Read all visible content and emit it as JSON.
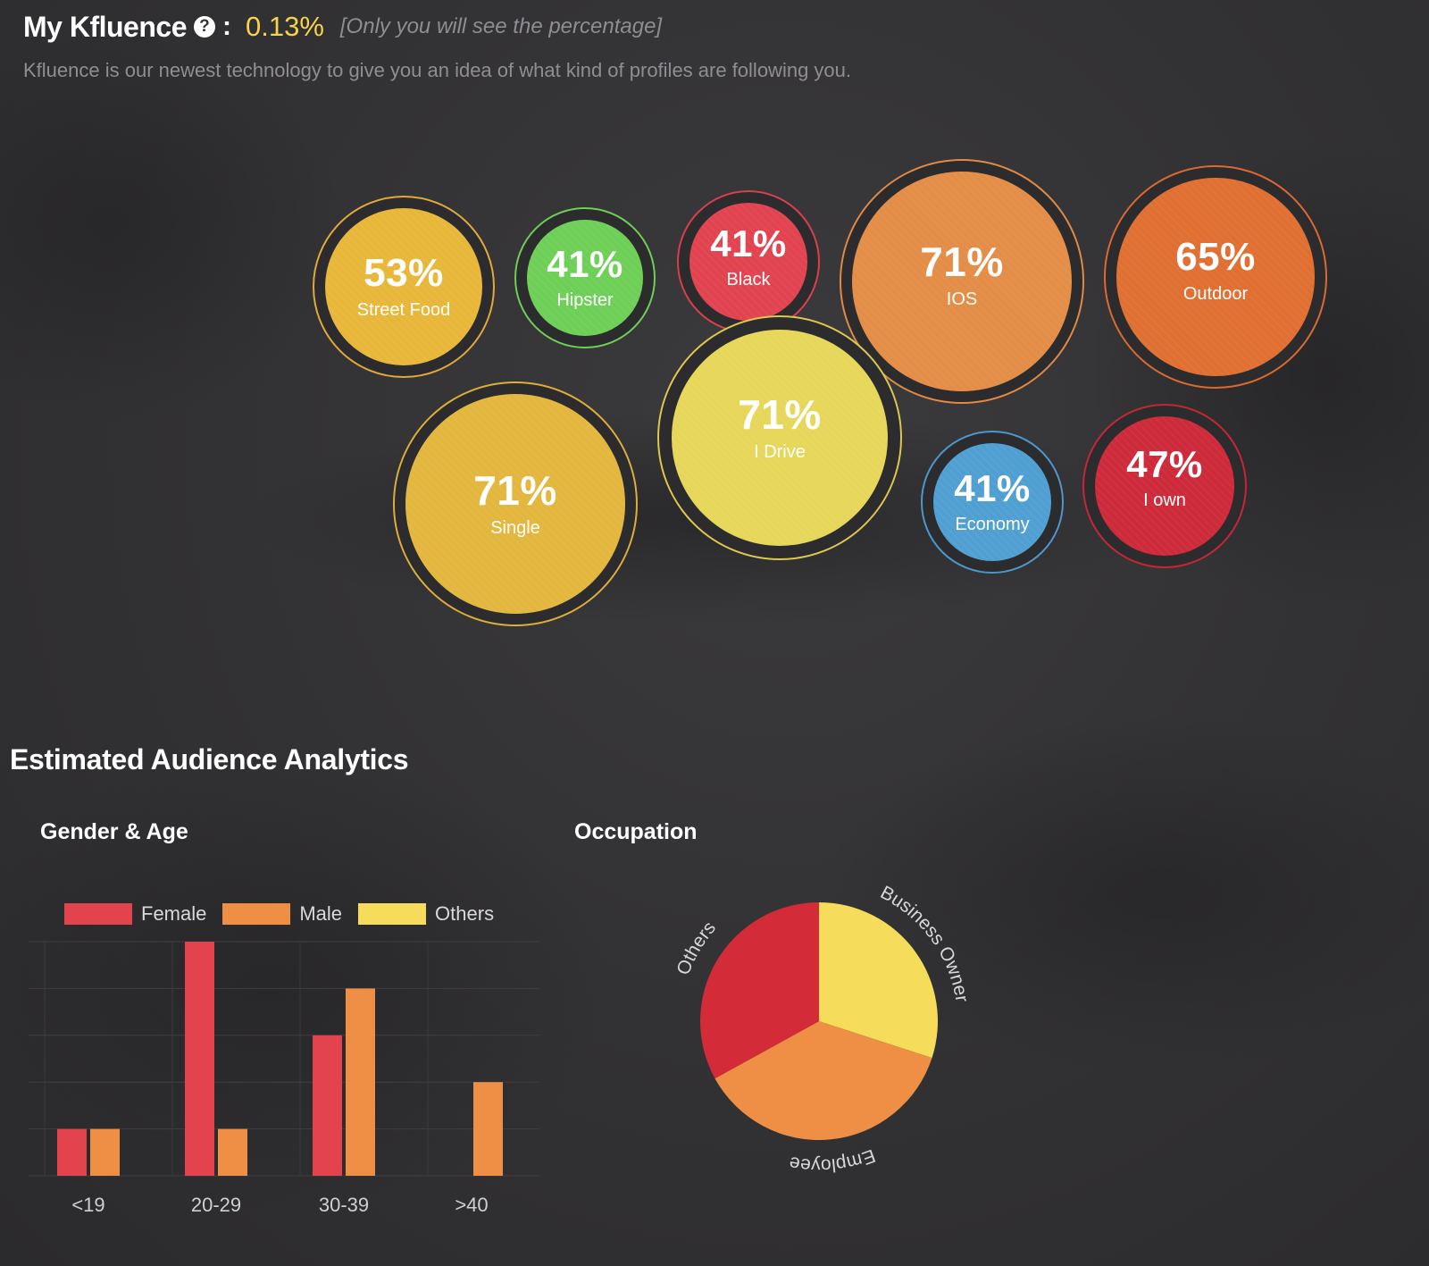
{
  "header": {
    "title": "My Kfluence",
    "colon": ":",
    "score": "0.13%",
    "score_note": "[Only you will see the percentage]",
    "subtitle": "Kfluence is our newest technology to give you an idea of what kind of profiles are following you."
  },
  "bubbles": [
    {
      "pct": "53%",
      "label": "Street Food",
      "color": "#e8b73a",
      "ring": "#e0a93a"
    },
    {
      "pct": "41%",
      "label": "Hipster",
      "color": "#6ecf57",
      "ring": "#6ecf57"
    },
    {
      "pct": "41%",
      "label": "Black",
      "color": "#e24350",
      "ring": "#d8404c"
    },
    {
      "pct": "71%",
      "label": "IOS",
      "color": "#e38d47",
      "ring": "#e08a44"
    },
    {
      "pct": "65%",
      "label": "Outdoor",
      "color": "#e06f32",
      "ring": "#dc6a30"
    },
    {
      "pct": "71%",
      "label": "Single",
      "color": "#e3b63e",
      "ring": "#dcae3a"
    },
    {
      "pct": "71%",
      "label": "I Drive",
      "color": "#e6d65a",
      "ring": "#ddc84d"
    },
    {
      "pct": "41%",
      "label": "Economy",
      "color": "#4f9fd2",
      "ring": "#4a98cc"
    },
    {
      "pct": "47%",
      "label": "I own",
      "color": "#cd2a3a",
      "ring": "#c52737"
    }
  ],
  "analytics": {
    "section_title": "Estimated Audience Analytics",
    "gender_age_title": "Gender & Age",
    "occupation_title": "Occupation"
  },
  "chart_data": [
    {
      "type": "bar",
      "title": "Gender & Age",
      "categories": [
        "<19",
        "20-29",
        "30-39",
        ">40"
      ],
      "series": [
        {
          "name": "Female",
          "color": "#e3434d",
          "values": [
            1,
            5,
            3,
            0
          ]
        },
        {
          "name": "Male",
          "color": "#ee8f45",
          "values": [
            1,
            1,
            4,
            2
          ]
        },
        {
          "name": "Others",
          "color": "#f5dc5a",
          "values": [
            0,
            0,
            0,
            0
          ]
        }
      ],
      "ylim": [
        0,
        5
      ],
      "grid": true,
      "legend": "top"
    },
    {
      "type": "pie",
      "title": "Occupation",
      "labels": [
        "Business Owner",
        "Employee",
        "Others"
      ],
      "values": [
        30,
        37,
        33
      ],
      "colors": [
        "#f5dc5a",
        "#ee8f45",
        "#d42b38"
      ]
    }
  ]
}
